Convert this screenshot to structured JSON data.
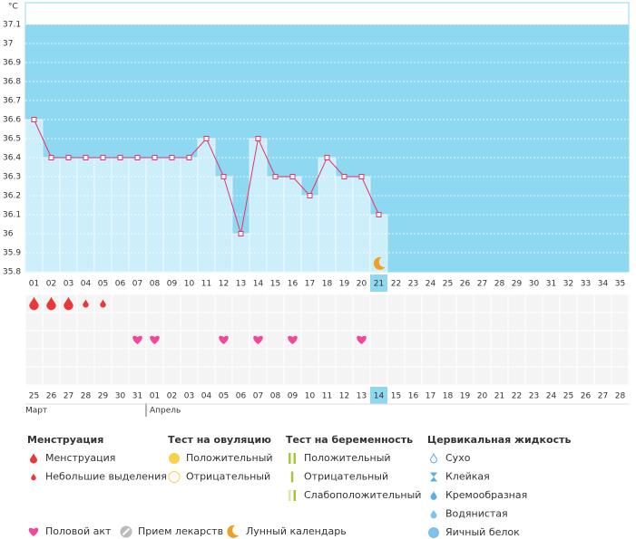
{
  "chart_data": {
    "type": "line",
    "y_label": "°C",
    "categories": [
      "01",
      "02",
      "03",
      "04",
      "05",
      "06",
      "07",
      "08",
      "09",
      "10",
      "11",
      "12",
      "13",
      "14",
      "15",
      "16",
      "17",
      "18",
      "19",
      "20",
      "21",
      "22",
      "23",
      "24",
      "25",
      "26",
      "27",
      "28",
      "29",
      "30",
      "31",
      "32",
      "33",
      "34",
      "35"
    ],
    "values": [
      36.6,
      36.4,
      36.4,
      36.4,
      36.4,
      36.4,
      36.4,
      36.4,
      36.4,
      36.4,
      36.5,
      36.3,
      36,
      36.5,
      36.3,
      36.3,
      36.2,
      36.4,
      36.3,
      36.3,
      36.1,
      null,
      null,
      null,
      null,
      null,
      null,
      null,
      null,
      null,
      null,
      null,
      null,
      null,
      null
    ],
    "ylim": [
      35.8,
      37.2
    ],
    "yticks": [
      35.8,
      35.9,
      36,
      36.1,
      36.2,
      36.3,
      36.4,
      36.5,
      36.6,
      36.7,
      36.8,
      36.9,
      37,
      37.1
    ],
    "grid": true,
    "line_color": "#e5336a",
    "bar_color": "#cdeffc",
    "background_color": "#8fd8f2",
    "current_day": "21",
    "markers": {
      "menstruation": [
        "01",
        "02",
        "03"
      ],
      "spotting": [
        "04",
        "05"
      ],
      "intercourse": [
        "07",
        "08",
        "12",
        "14",
        "16",
        "20"
      ],
      "lunar": [
        "21"
      ]
    },
    "dates": [
      "25",
      "26",
      "27",
      "28",
      "29",
      "30",
      "31",
      "01",
      "02",
      "03",
      "04",
      "05",
      "06",
      "07",
      "08",
      "09",
      "10",
      "11",
      "12",
      "13",
      "14",
      "15",
      "16",
      "17",
      "18",
      "19",
      "20",
      "21",
      "22",
      "23",
      "24",
      "25",
      "26",
      "27",
      "28"
    ],
    "weekends": [
      false,
      false,
      false,
      true,
      true,
      false,
      false,
      false,
      false,
      false,
      true,
      true,
      false,
      false,
      false,
      false,
      false,
      true,
      true,
      false,
      false,
      false,
      false,
      false,
      true,
      true,
      false,
      false,
      false,
      false,
      false,
      true,
      true,
      false,
      false
    ],
    "current_date": "14",
    "months": [
      "Март",
      "Апрель"
    ]
  },
  "legend": {
    "groups": [
      {
        "title": "Менструация",
        "items": [
          "Менструация",
          "Небольшие выделения"
        ]
      },
      {
        "title": "Тест на овуляцию",
        "items": [
          "Положительный",
          "Отрицательный"
        ]
      },
      {
        "title": "Тест на беременность",
        "items": [
          "Положительный",
          "Отрицательный",
          "Слабоположительный"
        ]
      },
      {
        "title": "Цервикальная жидкость",
        "items": [
          "Сухо",
          "Клейкая",
          "Кремообразная",
          "Водянистая",
          "Яичный белок"
        ]
      }
    ],
    "other": [
      "Половой акт",
      "Прием лекарств",
      "Лунный календарь"
    ]
  }
}
